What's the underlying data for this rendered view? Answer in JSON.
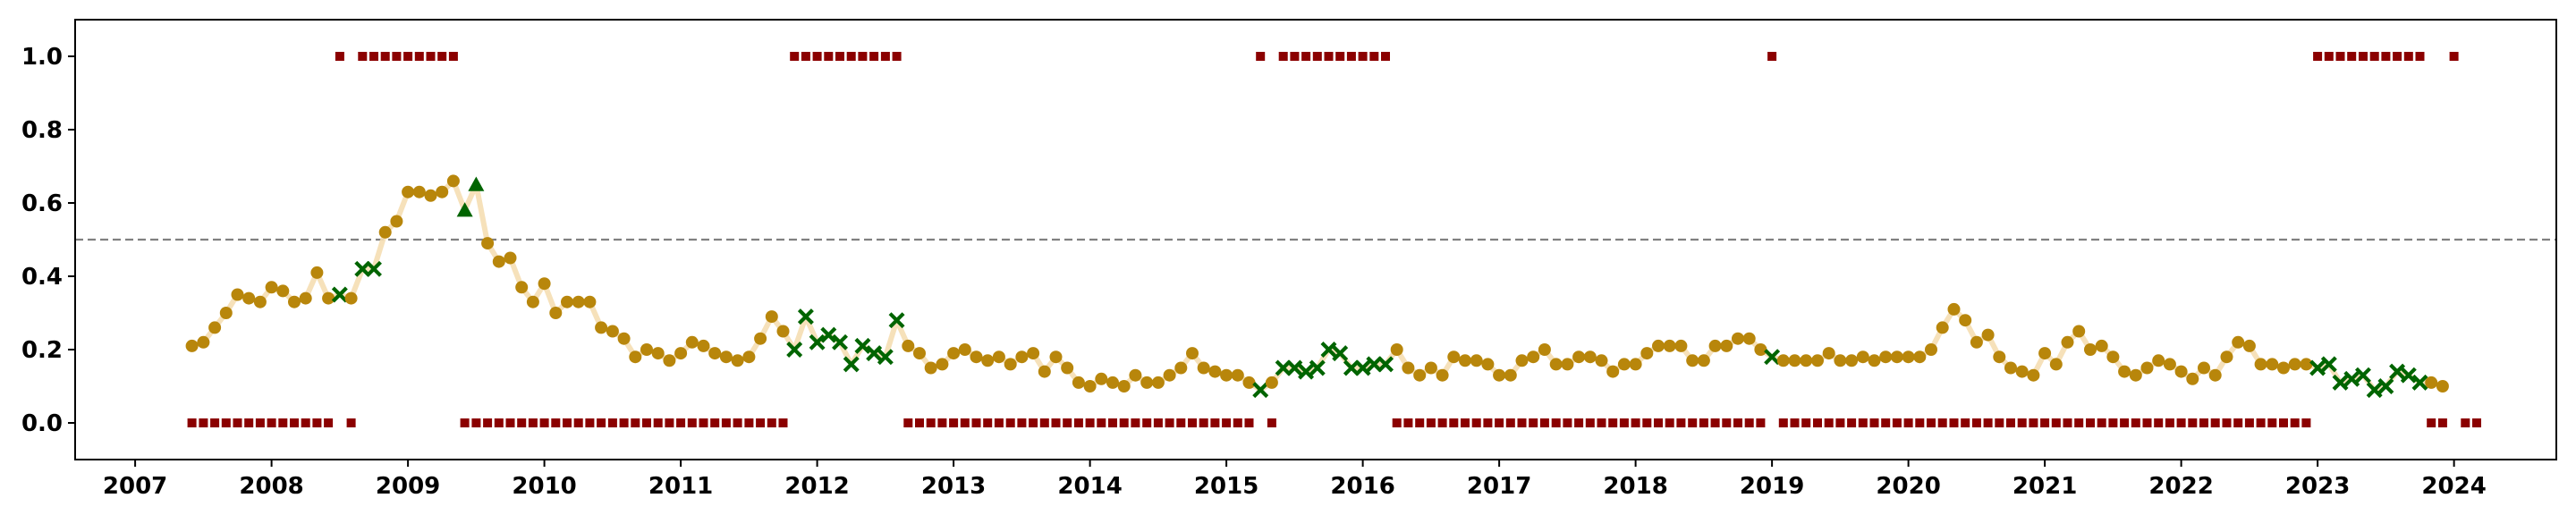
{
  "chart_data": {
    "type": "scatter",
    "title": "",
    "xlabel": "",
    "ylabel": "",
    "xlim": [
      2006.56,
      2024.75
    ],
    "ylim": [
      -0.1,
      1.1
    ],
    "xtick_labels": [
      "2007",
      "2008",
      "2009",
      "2010",
      "2011",
      "2012",
      "2013",
      "2014",
      "2015",
      "2016",
      "2017",
      "2018",
      "2019",
      "2020",
      "2021",
      "2022",
      "2023",
      "2024"
    ],
    "ytick_values": [
      0.0,
      0.2,
      0.4,
      0.6,
      0.8,
      1.0
    ],
    "ytick_labels": [
      "0.0",
      "0.2",
      "0.4",
      "0.6",
      "0.8",
      "1.0"
    ],
    "threshold": 0.5,
    "grid": false,
    "legend": "none",
    "colors": {
      "probability_line": "#f5deb3",
      "probability_marker": "#b8860b",
      "cross_marker": "#006400",
      "triangle_marker": "#006400",
      "regime_marker": "#8b0000",
      "threshold_line": "#808080"
    },
    "start_month": "2007-06",
    "probability": [
      0.21,
      0.22,
      0.26,
      0.3,
      0.35,
      0.34,
      0.33,
      0.37,
      0.36,
      0.33,
      0.34,
      0.41,
      0.34,
      0.35,
      0.34,
      0.42,
      0.42,
      0.52,
      0.55,
      0.63,
      0.63,
      0.62,
      0.63,
      0.66,
      0.58,
      0.65,
      0.49,
      0.44,
      0.45,
      0.37,
      0.33,
      0.38,
      0.3,
      0.33,
      0.33,
      0.33,
      0.26,
      0.25,
      0.23,
      0.18,
      0.2,
      0.19,
      0.17,
      0.19,
      0.22,
      0.21,
      0.19,
      0.18,
      0.17,
      0.18,
      0.23,
      0.29,
      0.25,
      0.2,
      0.29,
      0.22,
      0.24,
      0.22,
      0.16,
      0.21,
      0.19,
      0.18,
      0.28,
      0.21,
      0.19,
      0.15,
      0.16,
      0.19,
      0.2,
      0.18,
      0.17,
      0.18,
      0.16,
      0.18,
      0.19,
      0.14,
      0.18,
      0.15,
      0.11,
      0.1,
      0.12,
      0.11,
      0.1,
      0.13,
      0.11,
      0.11,
      0.13,
      0.15,
      0.19,
      0.15,
      0.14,
      0.13,
      0.13,
      0.11,
      0.09,
      0.11,
      0.15,
      0.15,
      0.14,
      0.15,
      0.2,
      0.19,
      0.15,
      0.15,
      0.16,
      0.16,
      0.2,
      0.15,
      0.13,
      0.15,
      0.13,
      0.18,
      0.17,
      0.17,
      0.16,
      0.13,
      0.13,
      0.17,
      0.18,
      0.2,
      0.16,
      0.16,
      0.18,
      0.18,
      0.17,
      0.14,
      0.16,
      0.16,
      0.19,
      0.21,
      0.21,
      0.21,
      0.17,
      0.17,
      0.21,
      0.21,
      0.23,
      0.23,
      0.2,
      0.18,
      0.17,
      0.17,
      0.17,
      0.17,
      0.19,
      0.17,
      0.17,
      0.18,
      0.17,
      0.18,
      0.18,
      0.18,
      0.18,
      0.2,
      0.26,
      0.31,
      0.28,
      0.22,
      0.24,
      0.18,
      0.15,
      0.14,
      0.13,
      0.19,
      0.16,
      0.22,
      0.25,
      0.2,
      0.21,
      0.18,
      0.14,
      0.13,
      0.15,
      0.17,
      0.16,
      0.14,
      0.12,
      0.15,
      0.13,
      0.18,
      0.22,
      0.21,
      0.16,
      0.16,
      0.15,
      0.16,
      0.16,
      0.15,
      0.16,
      0.11,
      0.12,
      0.13,
      0.09,
      0.1,
      0.14,
      0.13,
      0.11,
      0.11,
      0.1
    ],
    "point_marker": [
      "o",
      "o",
      "o",
      "o",
      "o",
      "o",
      "o",
      "o",
      "o",
      "o",
      "o",
      "o",
      "o",
      "x",
      "o",
      "x",
      "x",
      "o",
      "o",
      "o",
      "o",
      "o",
      "o",
      "o",
      "^",
      "^",
      "o",
      "o",
      "o",
      "o",
      "o",
      "o",
      "o",
      "o",
      "o",
      "o",
      "o",
      "o",
      "o",
      "o",
      "o",
      "o",
      "o",
      "o",
      "o",
      "o",
      "o",
      "o",
      "o",
      "o",
      "o",
      "o",
      "o",
      "x",
      "x",
      "x",
      "x",
      "x",
      "x",
      "x",
      "x",
      "x",
      "x",
      "o",
      "o",
      "o",
      "o",
      "o",
      "o",
      "o",
      "o",
      "o",
      "o",
      "o",
      "o",
      "o",
      "o",
      "o",
      "o",
      "o",
      "o",
      "o",
      "o",
      "o",
      "o",
      "o",
      "o",
      "o",
      "o",
      "o",
      "o",
      "o",
      "o",
      "o",
      "x",
      "o",
      "x",
      "x",
      "x",
      "x",
      "x",
      "x",
      "x",
      "x",
      "x",
      "x",
      "o",
      "o",
      "o",
      "o",
      "o",
      "o",
      "o",
      "o",
      "o",
      "o",
      "o",
      "o",
      "o",
      "o",
      "o",
      "o",
      "o",
      "o",
      "o",
      "o",
      "o",
      "o",
      "o",
      "o",
      "o",
      "o",
      "o",
      "o",
      "o",
      "o",
      "o",
      "o",
      "o",
      "x",
      "o",
      "o",
      "o",
      "o",
      "o",
      "o",
      "o",
      "o",
      "o",
      "o",
      "o",
      "o",
      "o",
      "o",
      "o",
      "o",
      "o",
      "o",
      "o",
      "o",
      "o",
      "o",
      "o",
      "o",
      "o",
      "o",
      "o",
      "o",
      "o",
      "o",
      "o",
      "o",
      "o",
      "o",
      "o",
      "o",
      "o",
      "o",
      "o",
      "o",
      "o",
      "o",
      "o",
      "o",
      "o",
      "o",
      "o",
      "x",
      "x",
      "x",
      "x",
      "x",
      "x",
      "x",
      "x",
      "x",
      "x",
      "o",
      "o",
      "x",
      "o",
      "o"
    ],
    "regime": [
      0,
      0,
      0,
      0,
      0,
      0,
      0,
      0,
      0,
      0,
      0,
      0,
      0,
      1,
      0,
      1,
      1,
      1,
      1,
      1,
      1,
      1,
      1,
      1,
      0,
      0,
      0,
      0,
      0,
      0,
      0,
      0,
      0,
      0,
      0,
      0,
      0,
      0,
      0,
      0,
      0,
      0,
      0,
      0,
      0,
      0,
      0,
      0,
      0,
      0,
      0,
      0,
      0,
      1,
      1,
      1,
      1,
      1,
      1,
      1,
      1,
      1,
      1,
      0,
      0,
      0,
      0,
      0,
      0,
      0,
      0,
      0,
      0,
      0,
      0,
      0,
      0,
      0,
      0,
      0,
      0,
      0,
      0,
      0,
      0,
      0,
      0,
      0,
      0,
      0,
      0,
      0,
      0,
      0,
      1,
      0,
      1,
      1,
      1,
      1,
      1,
      1,
      1,
      1,
      1,
      1,
      0,
      0,
      0,
      0,
      0,
      0,
      0,
      0,
      0,
      0,
      0,
      0,
      0,
      0,
      0,
      0,
      0,
      0,
      0,
      0,
      0,
      0,
      0,
      0,
      0,
      0,
      0,
      0,
      0,
      0,
      0,
      0,
      0,
      1,
      0,
      0,
      0,
      0,
      0,
      0,
      0,
      0,
      0,
      0,
      0,
      0,
      0,
      0,
      0,
      0,
      0,
      0,
      0,
      0,
      0,
      0,
      0,
      0,
      0,
      0,
      0,
      0,
      0,
      0,
      0,
      0,
      0,
      0,
      0,
      0,
      0,
      0,
      0,
      0,
      0,
      0,
      0,
      0,
      0,
      0,
      0,
      1,
      1,
      1,
      1,
      1,
      1,
      1,
      1,
      1,
      1,
      0,
      0,
      1,
      0,
      0
    ]
  }
}
